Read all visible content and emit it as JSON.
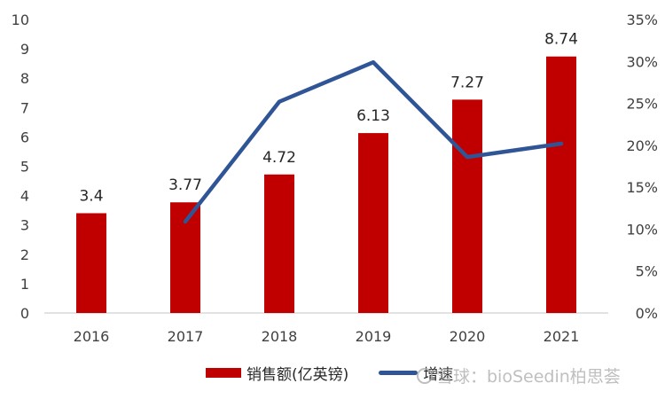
{
  "chart_data": {
    "type": "bar+line",
    "title": "",
    "categories": [
      "2016",
      "2017",
      "2018",
      "2019",
      "2020",
      "2021"
    ],
    "series": [
      {
        "name": "销售额(亿英镑)",
        "type": "bar",
        "axis": "left",
        "color": "#C00000",
        "values": [
          3.4,
          3.77,
          4.72,
          6.13,
          7.27,
          8.74
        ],
        "labels": [
          "3.4",
          "3.77",
          "4.72",
          "6.13",
          "7.27",
          "8.74"
        ]
      },
      {
        "name": "增速",
        "type": "line",
        "axis": "right",
        "color": "#2F5597",
        "values": [
          null,
          10.9,
          25.2,
          29.9,
          18.6,
          20.2
        ]
      }
    ],
    "left_axis": {
      "min": 0,
      "max": 10,
      "step": 1,
      "ticks": [
        "0",
        "1",
        "2",
        "3",
        "4",
        "5",
        "6",
        "7",
        "8",
        "9",
        "10"
      ]
    },
    "right_axis": {
      "min": 0,
      "max": 35,
      "step": 5,
      "ticks": [
        "0%",
        "5%",
        "10%",
        "15%",
        "20%",
        "25%",
        "30%",
        "35%"
      ]
    },
    "grid": false,
    "legend_position": "bottom"
  },
  "legend": {
    "bar_label": "销售额(亿英镑)",
    "line_label": "增速"
  },
  "watermark": "雪球：bioSeedin柏思荟"
}
